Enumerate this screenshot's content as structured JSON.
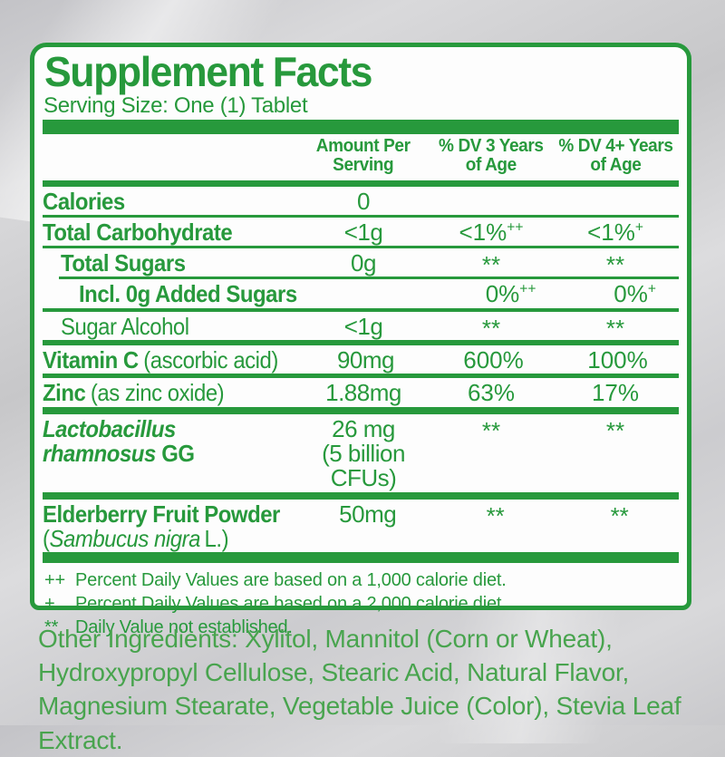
{
  "colors": {
    "green": "#27993c",
    "ingredients_green": "#48a44e"
  },
  "label": {
    "title": "Supplement Facts",
    "serving_size": "Serving Size: One (1) Tablet",
    "headers": {
      "amount": {
        "line1": "Amount Per",
        "line2": "Serving"
      },
      "dv3": {
        "line1": "% DV 3 Years",
        "line2": "of Age"
      },
      "dv4": {
        "line1": "% DV 4+ Years",
        "line2": "of Age"
      }
    },
    "rows": [
      {
        "name": "Calories",
        "amount": "0"
      },
      {
        "name": "Total Carbohydrate",
        "amount": "<1g",
        "dv3": "<1%",
        "dv3_sup": "++",
        "dv4": "<1%",
        "dv4_sup": "+"
      },
      {
        "name": "Total Sugars",
        "amount": "0g",
        "dv3": "**",
        "dv4": "**"
      },
      {
        "name": "Incl. 0g Added Sugars",
        "dv3": "0%",
        "dv3_sup": "++",
        "dv4": "0%",
        "dv4_sup": "+"
      },
      {
        "name": "Sugar Alcohol",
        "amount": "<1g",
        "dv3": "**",
        "dv4": "**"
      },
      {
        "name": "Vitamin C",
        "note": "(ascorbic acid)",
        "amount": "90mg",
        "dv3": "600%",
        "dv4": "100%"
      },
      {
        "name": "Zinc",
        "note": "(as zinc oxide)",
        "amount": "1.88mg",
        "dv3": "63%",
        "dv4": "17%"
      },
      {
        "name_line1": "Lactobacillus",
        "name_line2_italic": "rhamnosus",
        "name_line2_suffix": "GG",
        "amount": "26 mg",
        "amount_line2": "(5 billion CFUs)",
        "dv3": "**",
        "dv4": "**"
      },
      {
        "name": "Elderberry Fruit Powder",
        "latin_open": "(",
        "latin_italic": "Sambucus nigra",
        "latin_close": "L.)",
        "amount": "50mg",
        "dv3": "**",
        "dv4": "**"
      }
    ],
    "footnotes": [
      {
        "sym": "++",
        "text": "Percent Daily Values are based on a 1,000 calorie diet."
      },
      {
        "sym": "+",
        "text": "Percent Daily Values are based on a 2,000 calorie diet."
      },
      {
        "sym": "**",
        "text": "Daily Value not established."
      }
    ]
  },
  "other_ingredients": {
    "text": "Other Ingredients: Xylitol, Mannitol (Corn or Wheat), Hydroxypropyl Cellulose, Stearic Acid, Natural Flavor,  Magnesium Stearate, Vegetable Juice (Color), Stevia Leaf Extract."
  }
}
